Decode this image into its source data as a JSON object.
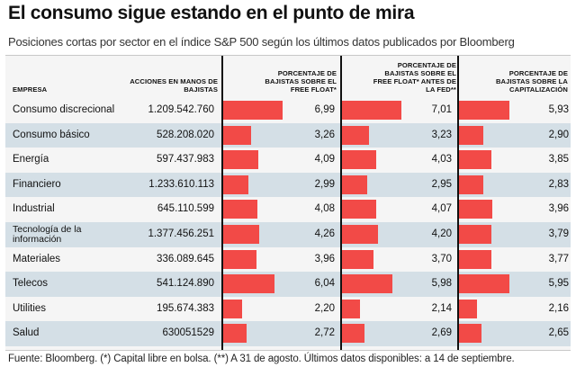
{
  "title": "El consumo sigue estando en el punto de mira",
  "subtitle": "Posiciones cortas por sector en el índice S&P 500 según los últimos datos publicados por Bloomberg",
  "source": "Fuente: Bloomberg. (*) Capital libre en bolsa. (**) A 31 de agosto. Últimos datos disponibles: a 14 de septiembre.",
  "colors": {
    "bar": "#f24a47",
    "row_alt": "#d4dfe6",
    "panel": "#f5f5f5"
  },
  "chart_data": {
    "type": "table",
    "columns": [
      "EMPRESA",
      "ACCIONES EN MANOS DE BAJISTAS",
      "PORCENTAJE DE BAJISTAS SOBRE EL FREE FLOAT*",
      "PORCENTAJE DE BAJISTAS SOBRE EL FREE FLOAT* ANTES DE LA FED**",
      "PORCENTAJE DE BAJISTAS SOBRE LA CAPITALIZACIÓN"
    ],
    "bar_scale_max": 7.5,
    "rows": [
      {
        "empresa": "Consumo discrecional",
        "acciones": "1.209.542.760",
        "free_float": 6.99,
        "free_float_label": "6,99",
        "antes_fed": 7.01,
        "antes_fed_label": "7,01",
        "capitalizacion": 5.93,
        "capitalizacion_label": "5,93"
      },
      {
        "empresa": "Consumo básico",
        "acciones": "528.208.020",
        "free_float": 3.26,
        "free_float_label": "3,26",
        "antes_fed": 3.23,
        "antes_fed_label": "3,23",
        "capitalizacion": 2.9,
        "capitalizacion_label": "2,90"
      },
      {
        "empresa": "Energía",
        "acciones": "597.437.983",
        "free_float": 4.09,
        "free_float_label": "4,09",
        "antes_fed": 4.03,
        "antes_fed_label": "4,03",
        "capitalizacion": 3.85,
        "capitalizacion_label": "3,85"
      },
      {
        "empresa": "Financiero",
        "acciones": "1.233.610.113",
        "free_float": 2.99,
        "free_float_label": "2,99",
        "antes_fed": 2.95,
        "antes_fed_label": "2,95",
        "capitalizacion": 2.83,
        "capitalizacion_label": "2,83"
      },
      {
        "empresa": "Industrial",
        "acciones": "645.110.599",
        "free_float": 4.08,
        "free_float_label": "4,08",
        "antes_fed": 4.07,
        "antes_fed_label": "4,07",
        "capitalizacion": 3.96,
        "capitalizacion_label": "3,96"
      },
      {
        "empresa": "Tecnología de la información",
        "acciones": "1.377.456.251",
        "free_float": 4.26,
        "free_float_label": "4,26",
        "antes_fed": 4.2,
        "antes_fed_label": "4,20",
        "capitalizacion": 3.79,
        "capitalizacion_label": "3,79"
      },
      {
        "empresa": "Materiales",
        "acciones": "336.089.645",
        "free_float": 3.96,
        "free_float_label": "3,96",
        "antes_fed": 3.7,
        "antes_fed_label": "3,70",
        "capitalizacion": 3.77,
        "capitalizacion_label": "3,77"
      },
      {
        "empresa": "Telecos",
        "acciones": "541.124.890",
        "free_float": 6.04,
        "free_float_label": "6,04",
        "antes_fed": 5.98,
        "antes_fed_label": "5,98",
        "capitalizacion": 5.95,
        "capitalizacion_label": "5,95"
      },
      {
        "empresa": "Utilities",
        "acciones": "195.674.383",
        "free_float": 2.2,
        "free_float_label": "2,20",
        "antes_fed": 2.14,
        "antes_fed_label": "2,14",
        "capitalizacion": 2.16,
        "capitalizacion_label": "2,16"
      },
      {
        "empresa": "Salud",
        "acciones": "630051529",
        "free_float": 2.72,
        "free_float_label": "2,72",
        "antes_fed": 2.69,
        "antes_fed_label": "2,69",
        "capitalizacion": 2.65,
        "capitalizacion_label": "2,65"
      }
    ]
  }
}
